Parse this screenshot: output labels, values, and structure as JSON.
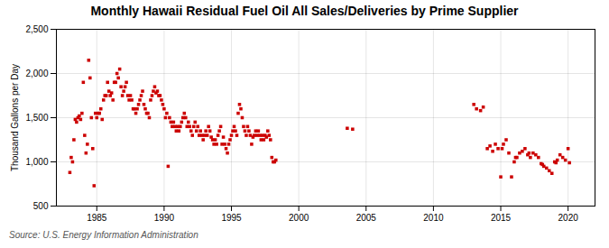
{
  "chart_data": {
    "type": "scatter",
    "title": "Monthly Hawaii Residual Fuel Oil All Sales/Deliveries by Prime Supplier",
    "ylabel": "Thousand Gallons per Day",
    "annotations": [
      "Source: U.S. Energy Information Administration"
    ],
    "color": "#cc0000",
    "marker": "square",
    "grid": true,
    "xlim": [
      1982,
      2022
    ],
    "xticks": [
      1985,
      1990,
      1995,
      2000,
      2005,
      2010,
      2015,
      2020
    ],
    "ylim": [
      500,
      2500
    ],
    "yticks": [
      500,
      {
        "value": 1000,
        "label": "1,000"
      },
      {
        "value": 1500,
        "label": "1,500"
      },
      {
        "value": 2000,
        "label": "2,000"
      },
      {
        "value": 2500,
        "label": "2,500"
      }
    ],
    "x": [
      1983.0,
      1983.1,
      1983.2,
      1983.3,
      1983.4,
      1983.5,
      1983.6,
      1983.7,
      1983.8,
      1983.9,
      1984.0,
      1984.1,
      1984.2,
      1984.3,
      1984.4,
      1984.5,
      1984.6,
      1984.7,
      1984.8,
      1984.9,
      1985.0,
      1985.1,
      1985.2,
      1985.3,
      1985.4,
      1985.5,
      1985.6,
      1985.7,
      1985.8,
      1985.9,
      1986.0,
      1986.1,
      1986.2,
      1986.3,
      1986.4,
      1986.5,
      1986.6,
      1986.7,
      1986.8,
      1986.9,
      1987.0,
      1987.1,
      1987.2,
      1987.3,
      1987.4,
      1987.5,
      1987.6,
      1987.7,
      1987.8,
      1987.9,
      1988.0,
      1988.1,
      1988.2,
      1988.3,
      1988.4,
      1988.5,
      1988.6,
      1988.7,
      1988.8,
      1988.9,
      1989.0,
      1989.1,
      1989.2,
      1989.3,
      1989.4,
      1989.5,
      1989.6,
      1989.7,
      1989.8,
      1989.9,
      1990.0,
      1990.1,
      1990.2,
      1990.3,
      1990.4,
      1990.5,
      1990.6,
      1990.7,
      1990.8,
      1990.9,
      1991.0,
      1991.1,
      1991.2,
      1991.3,
      1991.4,
      1991.5,
      1991.6,
      1991.7,
      1991.8,
      1991.9,
      1992.0,
      1992.1,
      1992.2,
      1992.3,
      1992.4,
      1992.5,
      1992.6,
      1992.7,
      1992.8,
      1992.9,
      1993.0,
      1993.1,
      1993.2,
      1993.3,
      1993.4,
      1993.5,
      1993.6,
      1993.7,
      1993.8,
      1993.9,
      1994.0,
      1994.1,
      1994.2,
      1994.3,
      1994.4,
      1994.5,
      1994.6,
      1994.7,
      1994.8,
      1994.9,
      1995.0,
      1995.1,
      1995.2,
      1995.3,
      1995.4,
      1995.5,
      1995.6,
      1995.7,
      1995.8,
      1995.9,
      1996.0,
      1996.1,
      1996.2,
      1996.3,
      1996.4,
      1996.5,
      1996.6,
      1996.7,
      1996.8,
      1996.9,
      1997.0,
      1997.1,
      1997.2,
      1997.3,
      1997.4,
      1997.5,
      1997.6,
      1997.7,
      1997.8,
      1997.9,
      1998.0,
      1998.1,
      1998.2,
      1998.3,
      2003.6,
      2004.0,
      2013.0,
      2013.2,
      2013.5,
      2013.7,
      2014.0,
      2014.2,
      2014.4,
      2014.6,
      2014.8,
      2015.0,
      2015.1,
      2015.2,
      2015.4,
      2015.6,
      2015.8,
      2016.0,
      2016.1,
      2016.2,
      2016.4,
      2016.6,
      2016.8,
      2017.0,
      2017.1,
      2017.2,
      2017.4,
      2017.6,
      2017.8,
      2018.0,
      2018.1,
      2018.2,
      2018.4,
      2018.6,
      2018.8,
      2019.0,
      2019.1,
      2019.2,
      2019.4,
      2019.6,
      2019.8,
      2020.0,
      2020.1
    ],
    "values": [
      880,
      1050,
      1000,
      1250,
      1480,
      1450,
      1500,
      1520,
      1480,
      1550,
      1900,
      1300,
      1100,
      1200,
      2150,
      1950,
      1500,
      1150,
      730,
      1550,
      1500,
      1550,
      1550,
      1600,
      1480,
      1700,
      1750,
      1750,
      1900,
      1800,
      1750,
      1780,
      1700,
      1900,
      1900,
      2000,
      1950,
      2050,
      1850,
      1750,
      1800,
      1850,
      1900,
      1750,
      1700,
      1750,
      1700,
      1600,
      1600,
      1550,
      1600,
      1650,
      1700,
      1750,
      1800,
      1650,
      1600,
      1550,
      1550,
      1500,
      1700,
      1750,
      1800,
      1850,
      1780,
      1800,
      1750,
      1750,
      1700,
      1650,
      1600,
      1500,
      1550,
      950,
      1500,
      1450,
      1400,
      1450,
      1400,
      1350,
      1400,
      1350,
      1400,
      1450,
      1500,
      1550,
      1500,
      1400,
      1450,
      1400,
      1350,
      1300,
      1400,
      1450,
      1350,
      1400,
      1300,
      1350,
      1300,
      1250,
      1300,
      1350,
      1300,
      1400,
      1350,
      1280,
      1250,
      1200,
      1250,
      1200,
      1300,
      1350,
      1400,
      1200,
      1280,
      1200,
      1150,
      1100,
      1200,
      1250,
      1300,
      1350,
      1400,
      1350,
      1300,
      1550,
      1650,
      1600,
      1500,
      1400,
      1350,
      1300,
      1400,
      1350,
      1300,
      1200,
      1280,
      1300,
      1350,
      1300,
      1350,
      1300,
      1250,
      1300,
      1250,
      1300,
      1280,
      1350,
      1300,
      1250,
      1050,
      1000,
      1000,
      1020,
      1380,
      1370,
      1650,
      1600,
      1580,
      1620,
      1150,
      1180,
      1120,
      1200,
      1150,
      830,
      1150,
      1200,
      1250,
      1100,
      830,
      1000,
      1050,
      1050,
      1100,
      1120,
      1150,
      1080,
      1100,
      1050,
      1100,
      1080,
      1050,
      980,
      970,
      950,
      930,
      900,
      870,
      1000,
      990,
      1020,
      1080,
      1050,
      1020,
      1150,
      990
    ]
  }
}
